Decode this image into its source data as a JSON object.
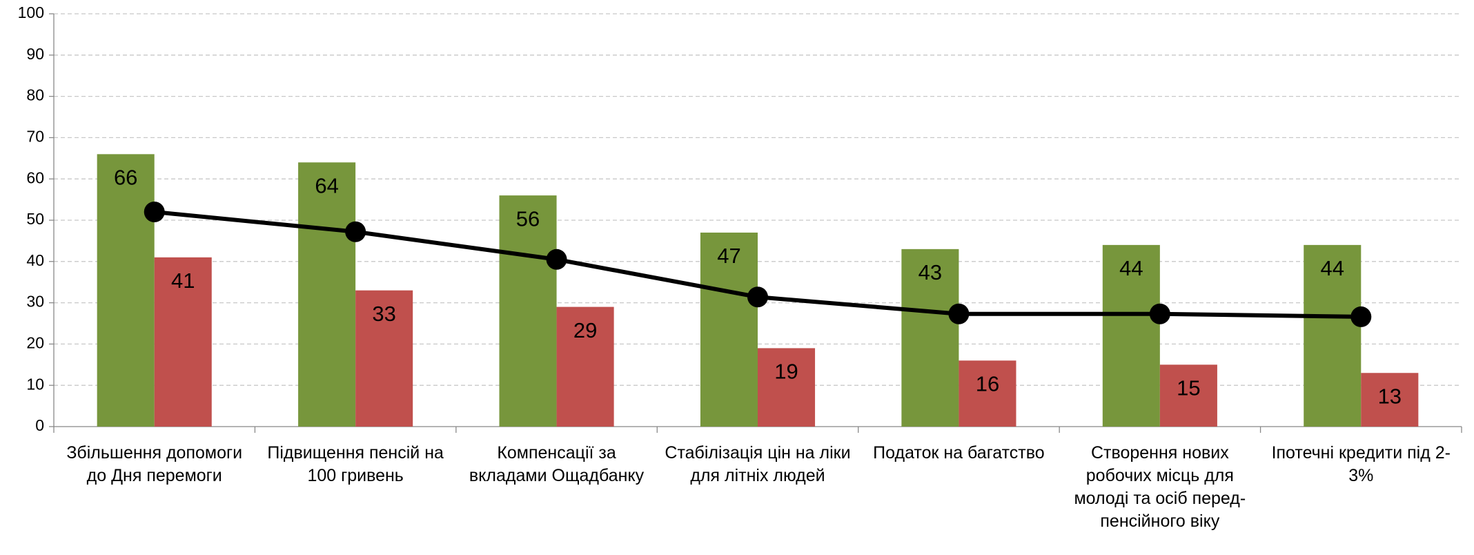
{
  "chart_data": {
    "type": "bar",
    "categories": [
      "Збільшення допомоги до Дня перемоги",
      "Підвищення пенсій на 100 гривень",
      "Компенсації за вкладами Ощадбанку",
      "Стабілізація цін на ліки для літніх людей",
      "Податок на багатство",
      "Створення нових робочих місць для молоді та осіб перед-пенсійного віку",
      "Іпотечні кредити під 2-3%"
    ],
    "series": [
      {
        "type": "bar",
        "color": "#77963c",
        "values": [
          66,
          64,
          56,
          47,
          43,
          44,
          44
        ]
      },
      {
        "type": "bar",
        "color": "#c0504d",
        "values": [
          41,
          33,
          29,
          19,
          16,
          15,
          13
        ]
      },
      {
        "type": "line",
        "color": "#000000",
        "values": [
          52,
          47.2,
          40.5,
          31.4,
          27.3,
          27.3,
          26.6
        ]
      }
    ],
    "ylim": [
      0,
      100
    ],
    "yticks": [
      0,
      10,
      20,
      30,
      40,
      50,
      60,
      70,
      80,
      90,
      100
    ],
    "grid": true
  }
}
